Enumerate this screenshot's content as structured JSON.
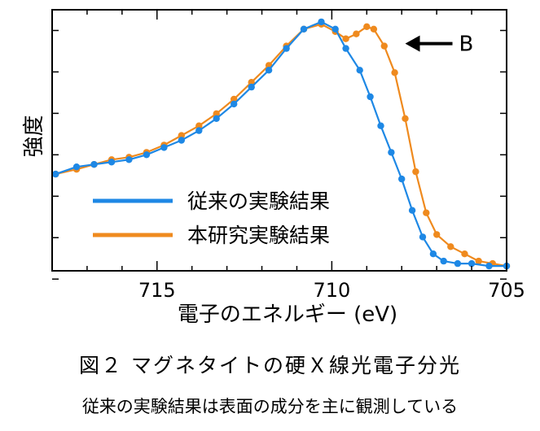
{
  "figure": {
    "title": "図２ マグネタイトの硬Ｘ線光電子分光",
    "subtitle": "従来の実験結果は表面の成分を主に観測している"
  },
  "chart_data": {
    "type": "line",
    "title": "",
    "xlabel": "電子のエネルギー (eV)",
    "ylabel": "強度",
    "xlim": [
      718,
      705
    ],
    "x_reversed": true,
    "ylim": [
      0,
      1.08
    ],
    "x_ticks": [
      715,
      710,
      705
    ],
    "y_ticks_labeled": false,
    "grid": false,
    "legend": {
      "position": "lower-left"
    },
    "annotation": {
      "text": "B",
      "x": 707.9,
      "y": 0.94
    },
    "series": [
      {
        "name": "従来の実験結果",
        "color": "#1e88e5",
        "x": [
          717.9,
          717.3,
          716.8,
          716.3,
          715.8,
          715.3,
          714.8,
          714.3,
          713.8,
          713.3,
          712.8,
          712.3,
          711.8,
          711.3,
          710.8,
          710.3,
          709.9,
          709.6,
          709.2,
          708.9,
          708.6,
          708.3,
          708.0,
          707.7,
          707.4,
          707.1,
          706.8,
          706.4,
          706.0,
          705.5,
          705.0
        ],
        "values": [
          0.4,
          0.43,
          0.44,
          0.45,
          0.46,
          0.48,
          0.51,
          0.54,
          0.58,
          0.63,
          0.69,
          0.76,
          0.83,
          0.92,
          1.0,
          1.03,
          1.0,
          0.92,
          0.83,
          0.72,
          0.6,
          0.49,
          0.38,
          0.25,
          0.14,
          0.07,
          0.04,
          0.03,
          0.03,
          0.02,
          0.02
        ]
      },
      {
        "name": "本研究実験結果",
        "color": "#ef8a1e",
        "x": [
          717.9,
          717.3,
          716.8,
          716.3,
          715.8,
          715.3,
          714.8,
          714.3,
          713.8,
          713.3,
          712.8,
          712.3,
          711.8,
          711.3,
          710.8,
          710.3,
          709.9,
          709.6,
          709.3,
          709.0,
          708.8,
          708.5,
          708.2,
          707.9,
          707.6,
          707.3,
          707.0,
          706.6,
          706.2,
          705.8,
          705.4,
          705.0
        ],
        "values": [
          0.4,
          0.42,
          0.44,
          0.46,
          0.47,
          0.49,
          0.52,
          0.56,
          0.6,
          0.65,
          0.71,
          0.78,
          0.85,
          0.93,
          1.0,
          1.02,
          0.99,
          0.96,
          0.98,
          1.01,
          1.0,
          0.93,
          0.82,
          0.63,
          0.41,
          0.24,
          0.15,
          0.1,
          0.07,
          0.04,
          0.03,
          0.02
        ]
      }
    ]
  }
}
